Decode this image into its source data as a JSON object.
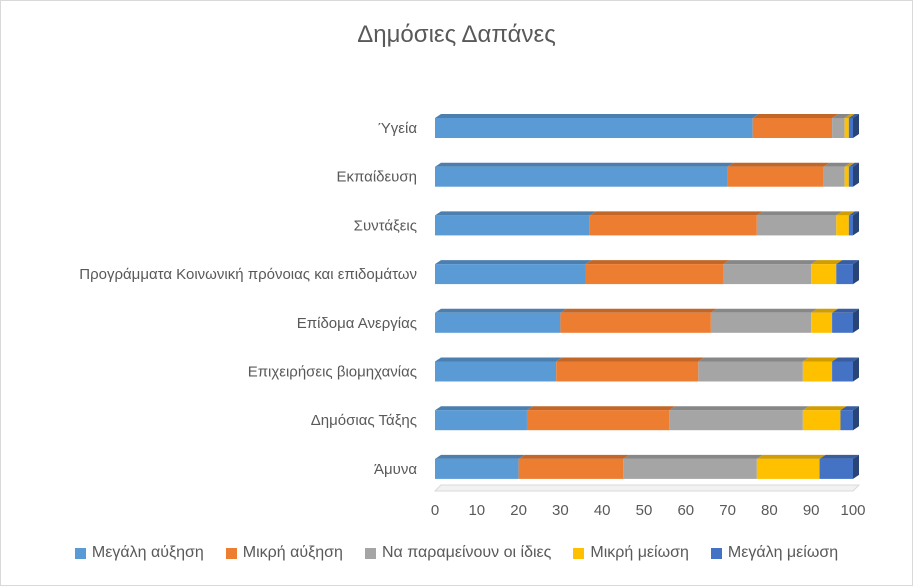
{
  "chart_data": {
    "type": "bar",
    "orientation": "horizontal",
    "stacked": "100%",
    "title": "Δημόσιες Δαπάνες",
    "categories": [
      "Ύγεία",
      "Εκπαίδευση",
      "Συντάξεις",
      "Προγράμματα Κοινωνική πρόνοιας και επιδομάτων",
      "Επίδομα Ανεργίας",
      "Επιχειρήσεις βιομηχανίας",
      "Δημόσιας Τάξης",
      "Άμυνα"
    ],
    "series": [
      {
        "name": "Μεγάλη αύξηση",
        "color": "#5b9bd5",
        "values": [
          76,
          70,
          37,
          36,
          30,
          29,
          22,
          20
        ]
      },
      {
        "name": "Μικρή αύξηση",
        "color": "#ed7d31",
        "values": [
          19,
          23,
          40,
          33,
          36,
          34,
          34,
          25
        ]
      },
      {
        "name": "Να παραμείνουν οι ίδιες",
        "color": "#a5a5a5",
        "values": [
          3,
          5,
          19,
          21,
          24,
          25,
          32,
          32
        ]
      },
      {
        "name": "Μικρή μείωση",
        "color": "#ffc000",
        "values": [
          1,
          1,
          3,
          6,
          5,
          7,
          9,
          15
        ]
      },
      {
        "name": "Μεγάλη μείωση",
        "color": "#4472c4",
        "values": [
          1,
          1,
          1,
          4,
          5,
          5,
          3,
          8
        ]
      }
    ],
    "xlim": [
      0,
      100
    ],
    "xticks": [
      "0",
      "10",
      "20",
      "30",
      "40",
      "50",
      "60",
      "70",
      "80",
      "90",
      "100"
    ],
    "legend_position": "bottom",
    "grid": false
  }
}
